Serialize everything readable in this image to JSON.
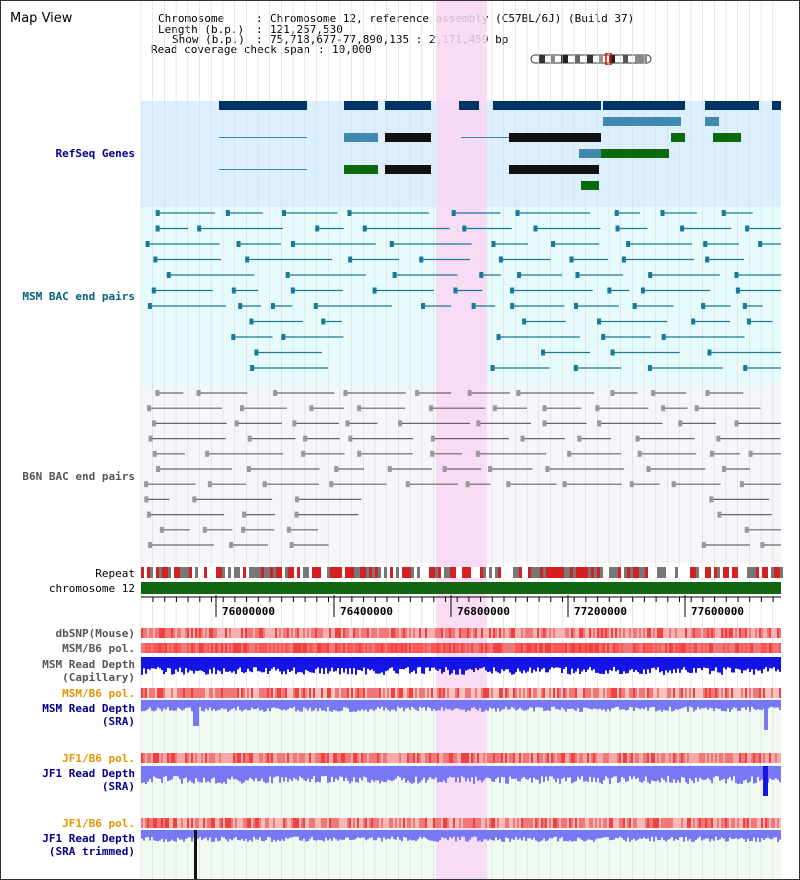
{
  "title": "Map View",
  "info": {
    "chromosome_key": "Chromosome",
    "chromosome_val": "Chromosome 12, reference assembly (C57BL/6J) (Build 37)",
    "length_key": "Length (b.p.)",
    "length_val": "121,257,530",
    "show_key": "Show (b.p.)",
    "show_val": "75,718,677-77,890,135 : 2,171,459 bp",
    "coverage_key": "Read coverage check span",
    "coverage_val": "10,000"
  },
  "tracks": {
    "refseq": "RefSeq Genes",
    "msm_bac": "MSM BAC end pairs",
    "b6n_bac": "B6N BAC end pairs",
    "repeat": "Repeat",
    "chromosome": "chromosome 12",
    "dbsnp": "dbSNP(Mouse)",
    "msm_b6_pol_1": "MSM/B6 pol.",
    "msm_read_depth_cap_1": "MSM Read Depth",
    "msm_read_depth_cap_2": "(Capillary)",
    "msm_b6_pol_2": "MSM/B6 pol.",
    "msm_read_depth_sra_1": "MSM Read Depth",
    "msm_read_depth_sra_2": "(SRA)",
    "jf1_b6_pol_1": "JF1/B6 pol.",
    "jf1_read_depth_sra_1": "JF1 Read Depth",
    "jf1_read_depth_sra_2": "(SRA)",
    "jf1_b6_pol_2": "JF1/B6 pol.",
    "jf1_read_depth_trim_1": "JF1 Read Depth",
    "jf1_read_depth_trim_2": "(SRA trimmed)"
  },
  "axis_ticks": [
    "76000000",
    "76400000",
    "76800000",
    "77200000",
    "77600000"
  ],
  "colors": {
    "refseq_bg": "#dcefff",
    "msm_bg": "#e6fcfc",
    "b6n_bg": "#f6f6fa",
    "highlight": "#f9d6f3",
    "chromosome": "#116611",
    "gene_dark": "#003366",
    "gene_mid": "#3f88b0",
    "gene_green": "#0b6b0b",
    "msm_pair": "#1a7a96",
    "b6n_pair": "#666666",
    "depth_blue": "#1414e6",
    "depth_light": "#7878f4"
  }
}
